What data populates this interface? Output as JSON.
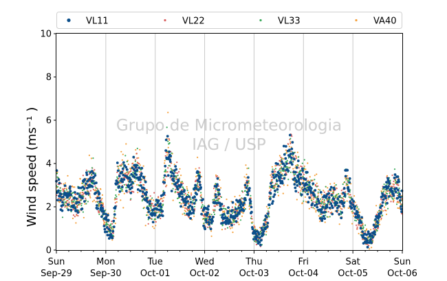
{
  "chart_data": {
    "type": "scatter",
    "title": "",
    "xlabel": "",
    "ylabel": "Wind speed (ms⁻¹ )",
    "ylim": [
      0,
      10
    ],
    "yticks": [
      0,
      2,
      4,
      6,
      8,
      10
    ],
    "xlim": [
      "2019-09-29T00:00",
      "2019-10-06T00:00"
    ],
    "xticks": [
      {
        "day": "Sun",
        "date": "Sep-29"
      },
      {
        "day": "Mon",
        "date": "Sep-30"
      },
      {
        "day": "Tue",
        "date": "Oct-01"
      },
      {
        "day": "Wed",
        "date": "Oct-02"
      },
      {
        "day": "Thu",
        "date": "Oct-03"
      },
      {
        "day": "Fri",
        "date": "Oct-04"
      },
      {
        "day": "Sat",
        "date": "Oct-05"
      },
      {
        "day": "Sun",
        "date": "Oct-06"
      }
    ],
    "grid": "vertical-major",
    "legend_position": "top",
    "watermark": [
      "Grupo de Micrometeorologia",
      "IAG / USP"
    ],
    "series": [
      {
        "name": "VL11",
        "color": "#0b4e8a",
        "marker": "dot-large"
      },
      {
        "name": "VL22",
        "color": "#d95f5f",
        "marker": "dot-small"
      },
      {
        "name": "VL33",
        "color": "#3aaa5a",
        "marker": "dot-small"
      },
      {
        "name": "VA40",
        "color": "#f5a03a",
        "marker": "dot-small"
      }
    ],
    "x": [
      "2019-09-29T00:00",
      "2019-09-29T03:00",
      "2019-09-29T06:00",
      "2019-09-29T09:00",
      "2019-09-29T12:00",
      "2019-09-29T15:00",
      "2019-09-29T18:00",
      "2019-09-29T21:00",
      "2019-09-30T00:00",
      "2019-09-30T03:00",
      "2019-09-30T06:00",
      "2019-09-30T09:00",
      "2019-09-30T12:00",
      "2019-09-30T15:00",
      "2019-09-30T18:00",
      "2019-09-30T21:00",
      "2019-10-01T00:00",
      "2019-10-01T03:00",
      "2019-10-01T06:00",
      "2019-10-01T09:00",
      "2019-10-01T12:00",
      "2019-10-01T15:00",
      "2019-10-01T18:00",
      "2019-10-01T21:00",
      "2019-10-02T00:00",
      "2019-10-02T03:00",
      "2019-10-02T06:00",
      "2019-10-02T09:00",
      "2019-10-02T12:00",
      "2019-10-02T15:00",
      "2019-10-02T18:00",
      "2019-10-02T21:00",
      "2019-10-03T00:00",
      "2019-10-03T03:00",
      "2019-10-03T06:00",
      "2019-10-03T09:00",
      "2019-10-03T12:00",
      "2019-10-03T15:00",
      "2019-10-03T18:00",
      "2019-10-03T21:00",
      "2019-10-04T00:00",
      "2019-10-04T03:00",
      "2019-10-04T06:00",
      "2019-10-04T09:00",
      "2019-10-04T12:00",
      "2019-10-04T15:00",
      "2019-10-04T18:00",
      "2019-10-04T21:00",
      "2019-10-05T00:00",
      "2019-10-05T03:00",
      "2019-10-05T06:00",
      "2019-10-05T09:00",
      "2019-10-05T12:00",
      "2019-10-05T15:00",
      "2019-10-05T18:00",
      "2019-10-05T21:00",
      "2019-10-06T00:00"
    ],
    "y_center": [
      3.0,
      2.4,
      2.6,
      2.1,
      2.4,
      3.0,
      3.3,
      2.2,
      1.3,
      0.8,
      3.2,
      3.5,
      3.3,
      3.8,
      3.0,
      1.9,
      1.8,
      2.0,
      4.5,
      3.5,
      2.8,
      2.2,
      2.0,
      3.2,
      1.5,
      1.4,
      2.8,
      1.6,
      1.5,
      1.7,
      2.0,
      3.0,
      0.7,
      0.6,
      1.2,
      3.2,
      3.5,
      3.8,
      4.5,
      3.4,
      3.1,
      2.8,
      2.6,
      1.9,
      2.2,
      2.5,
      2.0,
      3.2,
      2.0,
      1.4,
      0.6,
      0.5,
      1.3,
      2.5,
      2.8,
      2.9,
      2.2
    ]
  }
}
